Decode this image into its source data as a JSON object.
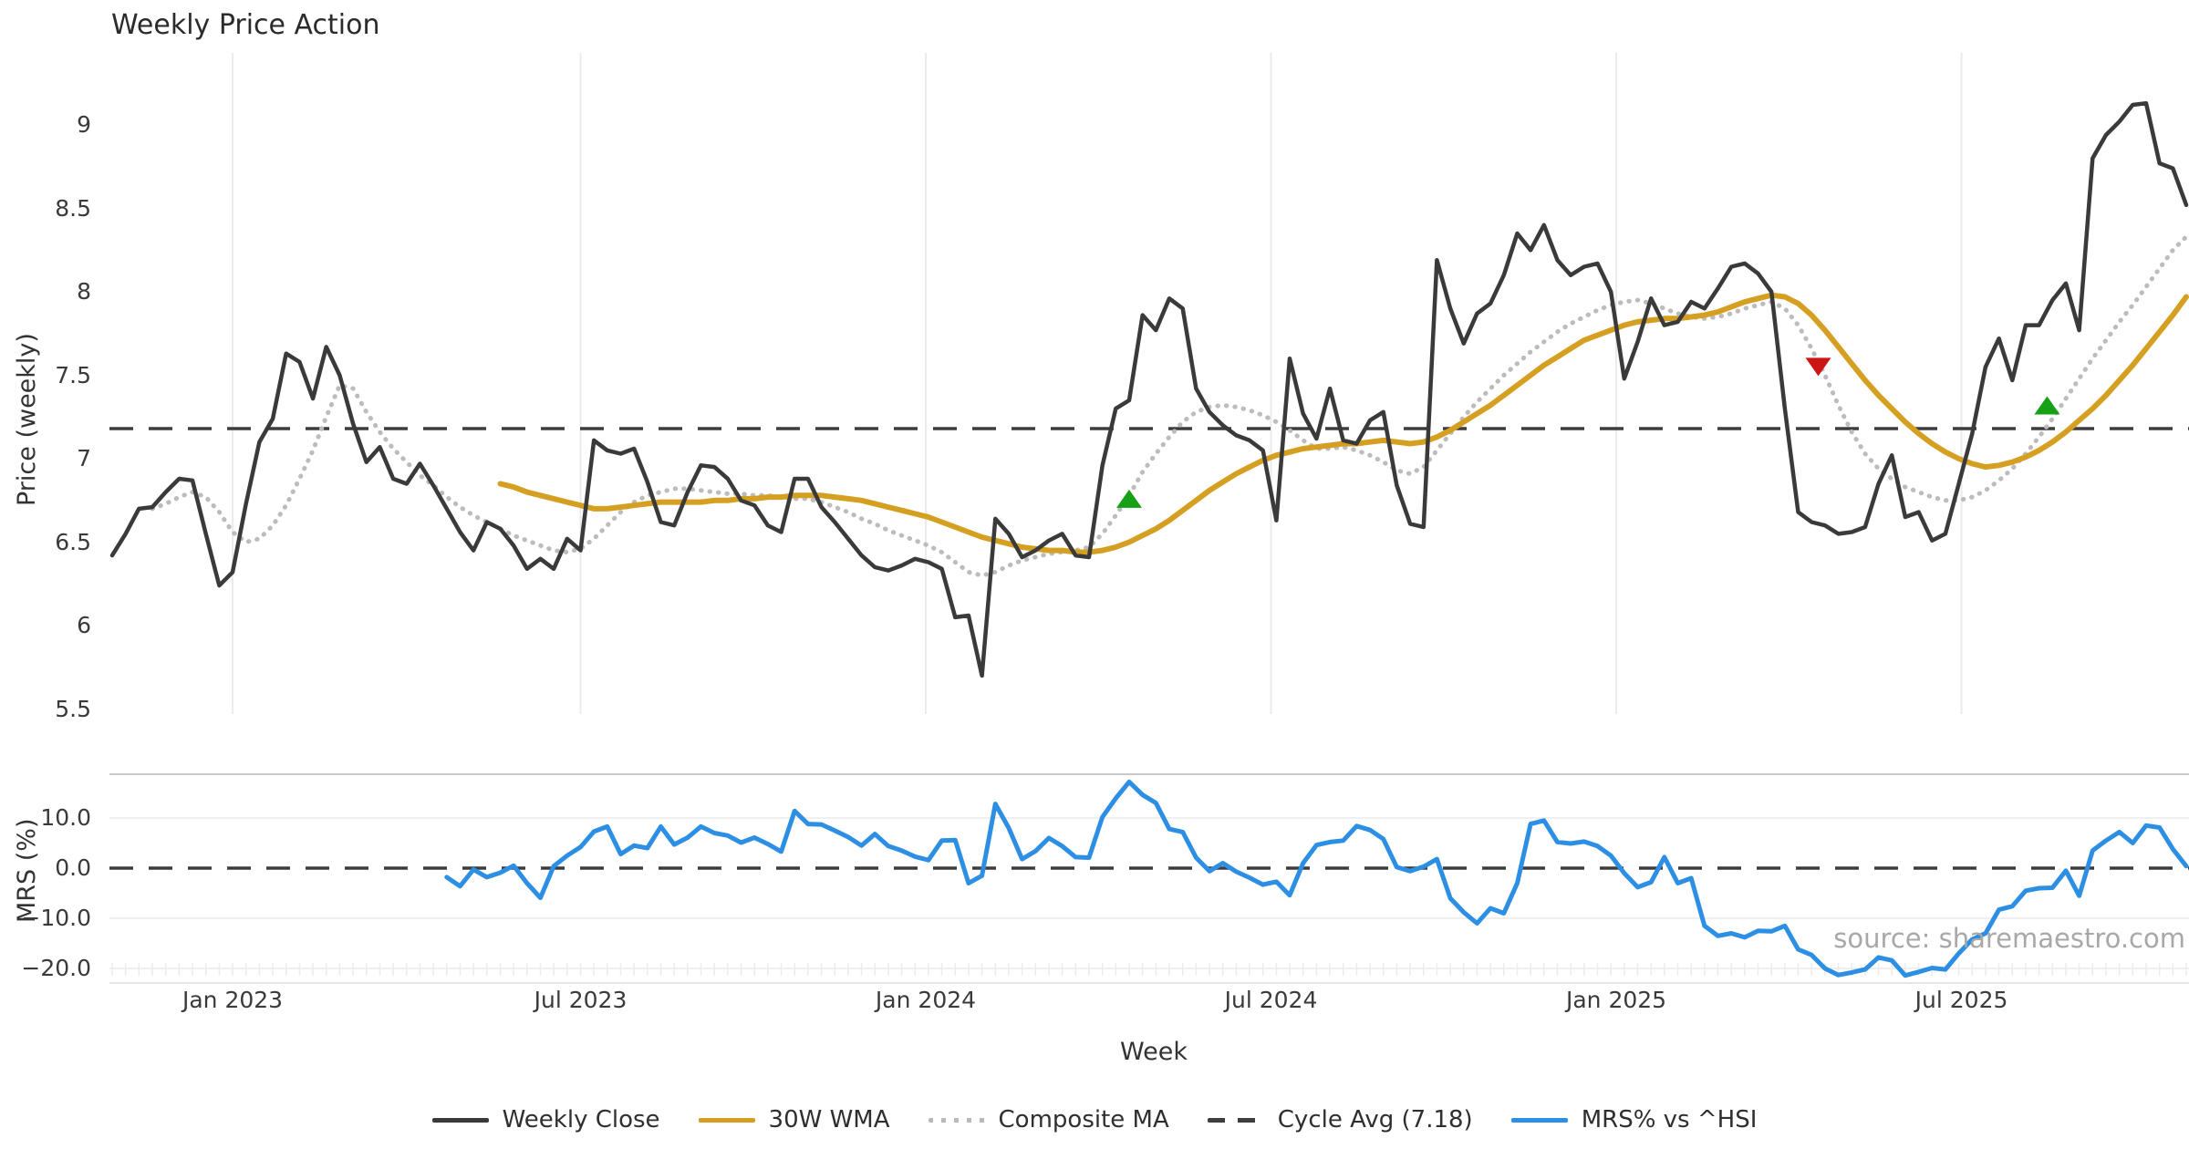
{
  "title": "Weekly Price Action",
  "price_panel": {
    "ylabel": "Price (weekly)",
    "y_ticks": [
      {
        "label": "9",
        "value": 9
      },
      {
        "label": "8.5",
        "value": 8.5
      },
      {
        "label": "8",
        "value": 8
      },
      {
        "label": "7.5",
        "value": 7.5
      },
      {
        "label": "7",
        "value": 7
      },
      {
        "label": "6.5",
        "value": 6.5
      },
      {
        "label": "6",
        "value": 6
      },
      {
        "label": "5.5",
        "value": 5.5
      }
    ]
  },
  "mrs_panel": {
    "ylabel": "MRS (%)",
    "y_ticks": [
      {
        "label": "10.0",
        "value": 10
      },
      {
        "label": "0.0",
        "value": 0
      },
      {
        "label": "−10.0",
        "value": -10
      },
      {
        "label": "−20.0",
        "value": -20
      }
    ]
  },
  "xlabel": "Week",
  "source": "source: sharemaestro.com",
  "legend": [
    {
      "label": "Weekly Close",
      "style": "solid",
      "color": "#3a3a3a"
    },
    {
      "label": "30W WMA",
      "style": "solid",
      "color": "#d5a021"
    },
    {
      "label": "Composite MA",
      "style": "dotted",
      "color": "#b9b9b9"
    },
    {
      "label": "Cycle Avg (7.18)",
      "style": "dashed",
      "color": "#3d3d3d"
    },
    {
      "label": "MRS% vs ^HSI",
      "style": "solid",
      "color": "#2d8fe3"
    }
  ],
  "chart_data": [
    {
      "type": "line",
      "title": "Weekly Price Action",
      "xlabel": "Week",
      "ylabel": "Price (weekly)",
      "ylim": [
        5.5,
        9.4
      ],
      "grid": "vertical-only",
      "legend_position": "bottom",
      "x_unit": "weekly index, week 0 ≈ Nov 2022",
      "x_ticks": [
        {
          "label": "Jan 2023",
          "index": 9.0
        },
        {
          "label": "Jul 2023",
          "index": 35.0
        },
        {
          "label": "Jan 2024",
          "index": 60.8
        },
        {
          "label": "Jul 2024",
          "index": 86.6
        },
        {
          "label": "Jan 2025",
          "index": 112.4
        },
        {
          "label": "Jul 2025",
          "index": 138.2
        }
      ],
      "series": [
        {
          "name": "Weekly Close",
          "color": "#3a3a3a",
          "style": "solid",
          "width": 4.5,
          "start_index": 0,
          "values": [
            6.42,
            6.55,
            6.7,
            6.71,
            6.8,
            6.88,
            6.87,
            6.55,
            6.24,
            6.32,
            6.73,
            7.1,
            7.24,
            7.63,
            7.58,
            7.36,
            7.67,
            7.5,
            7.21,
            6.98,
            7.07,
            6.88,
            6.85,
            6.97,
            6.84,
            6.7,
            6.56,
            6.45,
            6.62,
            6.58,
            6.48,
            6.34,
            6.4,
            6.34,
            6.52,
            6.45,
            7.11,
            7.05,
            7.03,
            7.06,
            6.86,
            6.62,
            6.6,
            6.8,
            6.96,
            6.95,
            6.88,
            6.75,
            6.72,
            6.6,
            6.56,
            6.88,
            6.88,
            6.71,
            6.62,
            6.52,
            6.42,
            6.35,
            6.33,
            6.36,
            6.4,
            6.38,
            6.34,
            6.05,
            6.06,
            5.7,
            6.64,
            6.55,
            6.41,
            6.45,
            6.51,
            6.55,
            6.42,
            6.41,
            6.96,
            7.3,
            7.35,
            7.86,
            7.77,
            7.96,
            7.9,
            7.42,
            7.28,
            7.2,
            7.14,
            7.11,
            7.05,
            6.63,
            7.6,
            7.27,
            7.12,
            7.42,
            7.11,
            7.09,
            7.23,
            7.28,
            6.84,
            6.61,
            6.59,
            8.19,
            7.9,
            7.69,
            7.87,
            7.93,
            8.1,
            8.35,
            8.25,
            8.4,
            8.19,
            8.1,
            8.15,
            8.17,
            8.0,
            7.48,
            7.7,
            7.96,
            7.8,
            7.82,
            7.94,
            7.9,
            8.02,
            8.15,
            8.17,
            8.11,
            8.0,
            7.3,
            6.68,
            6.62,
            6.6,
            6.55,
            6.56,
            6.59,
            6.85,
            7.02,
            6.65,
            6.68,
            6.51,
            6.55,
            6.85,
            7.15,
            7.55,
            7.72,
            7.47,
            7.8,
            7.8,
            7.95,
            8.05,
            7.77,
            8.8,
            8.94,
            9.02,
            9.12,
            9.13,
            8.77,
            8.74,
            8.52
          ]
        },
        {
          "name": "30W WMA",
          "color": "#d5a021",
          "style": "solid",
          "width": 6,
          "start_index": 29,
          "values": [
            6.85,
            6.83,
            6.8,
            6.78,
            6.76,
            6.74,
            6.72,
            6.7,
            6.7,
            6.71,
            6.72,
            6.73,
            6.74,
            6.74,
            6.74,
            6.74,
            6.75,
            6.75,
            6.76,
            6.76,
            6.77,
            6.77,
            6.78,
            6.78,
            6.78,
            6.77,
            6.76,
            6.75,
            6.73,
            6.71,
            6.69,
            6.67,
            6.65,
            6.62,
            6.59,
            6.56,
            6.53,
            6.51,
            6.49,
            6.47,
            6.46,
            6.45,
            6.45,
            6.44,
            6.44,
            6.45,
            6.47,
            6.5,
            6.54,
            6.58,
            6.63,
            6.69,
            6.75,
            6.81,
            6.86,
            6.91,
            6.95,
            6.99,
            7.02,
            7.04,
            7.06,
            7.07,
            7.08,
            7.09,
            7.09,
            7.1,
            7.11,
            7.1,
            7.09,
            7.1,
            7.13,
            7.17,
            7.22,
            7.27,
            7.32,
            7.38,
            7.44,
            7.5,
            7.56,
            7.61,
            7.66,
            7.71,
            7.74,
            7.77,
            7.8,
            7.82,
            7.83,
            7.84,
            7.84,
            7.85,
            7.86,
            7.88,
            7.91,
            7.94,
            7.96,
            7.98,
            7.97,
            7.93,
            7.86,
            7.77,
            7.67,
            7.57,
            7.47,
            7.38,
            7.3,
            7.22,
            7.15,
            7.09,
            7.04,
            7.0,
            6.97,
            6.95,
            6.96,
            6.98,
            7.01,
            7.05,
            7.1,
            7.16,
            7.23,
            7.3,
            7.38,
            7.47,
            7.56,
            7.66,
            7.76,
            7.86,
            7.97
          ]
        },
        {
          "name": "Composite MA",
          "color": "#bcbcbc",
          "style": "dotted",
          "width": 4,
          "start_index": 3,
          "values": [
            6.7,
            6.73,
            6.77,
            6.8,
            6.77,
            6.68,
            6.56,
            6.5,
            6.52,
            6.6,
            6.72,
            6.88,
            7.05,
            7.25,
            7.44,
            7.42,
            7.28,
            7.16,
            7.06,
            6.98,
            6.9,
            6.84,
            6.77,
            6.71,
            6.66,
            6.62,
            6.58,
            6.54,
            6.51,
            6.48,
            6.45,
            6.44,
            6.46,
            6.52,
            6.6,
            6.68,
            6.74,
            6.78,
            6.8,
            6.82,
            6.82,
            6.81,
            6.8,
            6.79,
            6.79,
            6.78,
            6.78,
            6.77,
            6.76,
            6.76,
            6.74,
            6.71,
            6.68,
            6.64,
            6.61,
            6.57,
            6.54,
            6.51,
            6.48,
            6.44,
            6.38,
            6.32,
            6.3,
            6.32,
            6.36,
            6.39,
            6.41,
            6.43,
            6.44,
            6.45,
            6.47,
            6.55,
            6.66,
            6.78,
            6.92,
            7.03,
            7.13,
            7.22,
            7.28,
            7.31,
            7.32,
            7.31,
            7.29,
            7.26,
            7.22,
            7.17,
            7.11,
            7.06,
            7.06,
            7.07,
            7.05,
            7.02,
            6.98,
            6.93,
            6.91,
            6.95,
            7.05,
            7.15,
            7.25,
            7.34,
            7.42,
            7.5,
            7.57,
            7.64,
            7.7,
            7.76,
            7.81,
            7.85,
            7.89,
            7.92,
            7.94,
            7.95,
            7.93,
            7.9,
            7.87,
            7.85,
            7.84,
            7.85,
            7.87,
            7.9,
            7.92,
            7.94,
            7.9,
            7.8,
            7.66,
            7.5,
            7.32,
            7.16,
            7.03,
            6.94,
            6.88,
            6.83,
            6.8,
            6.77,
            6.75,
            6.75,
            6.77,
            6.81,
            6.87,
            6.94,
            7.03,
            7.13,
            7.24,
            7.36,
            7.48,
            7.6,
            7.71,
            7.82,
            7.92,
            8.03,
            8.14,
            8.25,
            8.33
          ]
        },
        {
          "name": "Cycle Avg (7.18)",
          "color": "#3d3d3d",
          "style": "dashed",
          "width": 3.5,
          "constant": 7.18
        }
      ],
      "markers": [
        {
          "shape": "triangle-up",
          "color": "#16a016",
          "index": 76,
          "value": 6.76
        },
        {
          "shape": "triangle-down",
          "color": "#cc1616",
          "index": 127.5,
          "value": 7.55
        },
        {
          "shape": "triangle-up",
          "color": "#16a016",
          "index": 144.6,
          "value": 7.32
        }
      ]
    },
    {
      "type": "line",
      "ylabel": "MRS (%)",
      "ylim": [
        -24,
        18.5
      ],
      "zero_line": {
        "style": "dashed",
        "color": "#3d3d3d",
        "value": 0
      },
      "series": [
        {
          "name": "MRS% vs ^HSI",
          "color": "#2d8fe3",
          "style": "solid",
          "width": 5,
          "start_index": 25,
          "values": [
            -1.8,
            -3.6,
            -0.3,
            -1.8,
            -0.9,
            0.5,
            -3.0,
            -5.9,
            0.4,
            2.5,
            4.2,
            7.3,
            8.3,
            2.8,
            4.5,
            4.0,
            8.3,
            4.7,
            6.1,
            8.3,
            7.0,
            6.5,
            5.1,
            6.1,
            4.8,
            3.3,
            11.4,
            8.8,
            8.7,
            7.5,
            6.2,
            4.5,
            6.8,
            4.4,
            3.5,
            2.3,
            1.6,
            5.5,
            5.6,
            -3.0,
            -1.5,
            12.8,
            8.0,
            1.8,
            3.4,
            6.0,
            4.4,
            2.2,
            2.1,
            10.2,
            13.9,
            17.2,
            14.6,
            13.0,
            7.8,
            7.2,
            2.1,
            -0.6,
            1.0,
            -0.7,
            -1.9,
            -3.3,
            -2.7,
            -5.4,
            1.0,
            4.6,
            5.2,
            5.5,
            8.4,
            7.6,
            5.8,
            0.2,
            -0.6,
            0.3,
            1.8,
            -6.0,
            -8.8,
            -11.0,
            -8.0,
            -9.0,
            -3.0,
            8.8,
            9.5,
            5.2,
            4.9,
            5.3,
            4.4,
            2.5,
            -1.0,
            -3.8,
            -2.8,
            2.2,
            -3.0,
            -2.0,
            -11.5,
            -13.5,
            -13.0,
            -13.8,
            -12.5,
            -12.6,
            -11.5,
            -16.2,
            -17.3,
            -20.0,
            -21.3,
            -20.8,
            -20.2,
            -17.8,
            -18.4,
            -21.4,
            -20.7,
            -19.9,
            -20.2,
            -17.0,
            -14.2,
            -13.0,
            -8.3,
            -7.6,
            -4.5,
            -4.0,
            -3.9,
            -0.5,
            -5.5,
            3.5,
            5.5,
            7.2,
            5.0,
            8.5,
            8.1,
            3.8,
            0.4
          ]
        }
      ]
    }
  ]
}
